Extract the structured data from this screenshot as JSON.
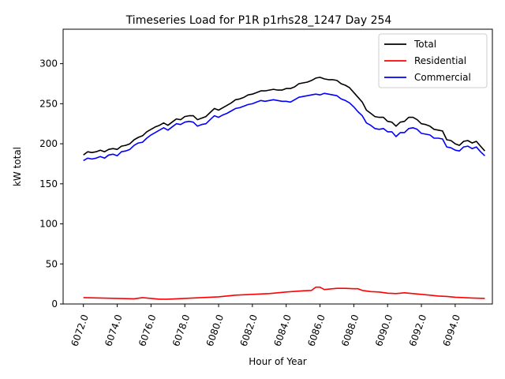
{
  "chart_data": {
    "type": "line",
    "title": "Timeseries Load for P1R p1rhs28_1247  Day 254",
    "xlabel": "Hour of Year",
    "ylabel": "kW total",
    "xlim": [
      6070.8,
      6096.2
    ],
    "ylim": [
      0,
      343
    ],
    "x_ticks": [
      6072,
      6074,
      6076,
      6078,
      6080,
      6082,
      6084,
      6086,
      6088,
      6090,
      6092,
      6094
    ],
    "x_tick_labels": [
      "6072.0",
      "6074.0",
      "6076.0",
      "6078.0",
      "6080.0",
      "6082.0",
      "6084.0",
      "6086.0",
      "6088.0",
      "6090.0",
      "6092.0",
      "6094.0"
    ],
    "y_ticks": [
      0,
      50,
      100,
      150,
      200,
      250,
      300
    ],
    "y_tick_labels": [
      "0",
      "50",
      "100",
      "150",
      "200",
      "250",
      "300"
    ],
    "grid": false,
    "legend": "top-right",
    "series": [
      {
        "name": "Total",
        "color": "#000000",
        "points": [
          [
            6072.0,
            186
          ],
          [
            6072.25,
            190
          ],
          [
            6072.5,
            189
          ],
          [
            6072.75,
            190
          ],
          [
            6073.0,
            192
          ],
          [
            6073.25,
            190
          ],
          [
            6073.5,
            193
          ],
          [
            6073.75,
            194
          ],
          [
            6074.0,
            193
          ],
          [
            6074.25,
            197
          ],
          [
            6074.5,
            198
          ],
          [
            6074.75,
            200
          ],
          [
            6075.0,
            205
          ],
          [
            6075.25,
            208
          ],
          [
            6075.5,
            210
          ],
          [
            6075.75,
            215
          ],
          [
            6076.0,
            218
          ],
          [
            6076.25,
            221
          ],
          [
            6076.5,
            223
          ],
          [
            6076.75,
            226
          ],
          [
            6077.0,
            223
          ],
          [
            6077.25,
            227
          ],
          [
            6077.5,
            231
          ],
          [
            6077.75,
            230
          ],
          [
            6078.0,
            234
          ],
          [
            6078.25,
            235
          ],
          [
            6078.5,
            235
          ],
          [
            6078.75,
            230
          ],
          [
            6079.0,
            232
          ],
          [
            6079.25,
            234
          ],
          [
            6079.5,
            239
          ],
          [
            6079.75,
            244
          ],
          [
            6080.0,
            242
          ],
          [
            6080.25,
            245
          ],
          [
            6080.5,
            248
          ],
          [
            6080.75,
            251
          ],
          [
            6081.0,
            255
          ],
          [
            6081.25,
            256
          ],
          [
            6081.5,
            258
          ],
          [
            6081.75,
            261
          ],
          [
            6082.0,
            262
          ],
          [
            6082.25,
            264
          ],
          [
            6082.5,
            266
          ],
          [
            6082.75,
            266
          ],
          [
            6083.0,
            267
          ],
          [
            6083.25,
            268
          ],
          [
            6083.5,
            267
          ],
          [
            6083.75,
            267
          ],
          [
            6084.0,
            269
          ],
          [
            6084.25,
            269
          ],
          [
            6084.5,
            271
          ],
          [
            6084.75,
            275
          ],
          [
            6085.0,
            276
          ],
          [
            6085.25,
            277
          ],
          [
            6085.5,
            279
          ],
          [
            6085.75,
            282
          ],
          [
            6086.0,
            283
          ],
          [
            6086.25,
            281
          ],
          [
            6086.5,
            280
          ],
          [
            6086.75,
            280
          ],
          [
            6087.0,
            279
          ],
          [
            6087.25,
            275
          ],
          [
            6087.5,
            273
          ],
          [
            6087.75,
            270
          ],
          [
            6088.0,
            264
          ],
          [
            6088.25,
            258
          ],
          [
            6088.5,
            252
          ],
          [
            6088.75,
            242
          ],
          [
            6089.0,
            238
          ],
          [
            6089.25,
            234
          ],
          [
            6089.5,
            233
          ],
          [
            6089.75,
            233
          ],
          [
            6090.0,
            228
          ],
          [
            6090.25,
            227
          ],
          [
            6090.5,
            222
          ],
          [
            6090.75,
            227
          ],
          [
            6091.0,
            228
          ],
          [
            6091.25,
            233
          ],
          [
            6091.5,
            233
          ],
          [
            6091.75,
            230
          ],
          [
            6092.0,
            225
          ],
          [
            6092.25,
            224
          ],
          [
            6092.5,
            222
          ],
          [
            6092.75,
            218
          ],
          [
            6093.0,
            217
          ],
          [
            6093.25,
            216
          ],
          [
            6093.5,
            205
          ],
          [
            6093.75,
            204
          ],
          [
            6094.0,
            200
          ],
          [
            6094.25,
            198
          ],
          [
            6094.5,
            203
          ],
          [
            6094.75,
            204
          ],
          [
            6095.0,
            201
          ],
          [
            6095.25,
            203
          ],
          [
            6095.5,
            197
          ],
          [
            6095.75,
            191
          ]
        ]
      },
      {
        "name": "Residential",
        "color": "#ff0000",
        "points": [
          [
            6072.0,
            8
          ],
          [
            6073.0,
            7.5
          ],
          [
            6074.0,
            7
          ],
          [
            6075.0,
            6.5
          ],
          [
            6075.5,
            8
          ],
          [
            6076.0,
            7
          ],
          [
            6076.5,
            6
          ],
          [
            6077.0,
            6
          ],
          [
            6078.0,
            7
          ],
          [
            6079.0,
            8
          ],
          [
            6080.0,
            9
          ],
          [
            6081.0,
            11
          ],
          [
            6082.0,
            12
          ],
          [
            6083.0,
            13
          ],
          [
            6084.0,
            15
          ],
          [
            6085.0,
            16.5
          ],
          [
            6085.5,
            17
          ],
          [
            6085.75,
            21
          ],
          [
            6086.0,
            21
          ],
          [
            6086.25,
            18
          ],
          [
            6086.5,
            18.5
          ],
          [
            6087.0,
            19.5
          ],
          [
            6087.5,
            19.5
          ],
          [
            6088.0,
            19
          ],
          [
            6088.25,
            19
          ],
          [
            6088.5,
            17
          ],
          [
            6089.0,
            15.5
          ],
          [
            6089.5,
            15
          ],
          [
            6090.0,
            13.5
          ],
          [
            6090.5,
            13
          ],
          [
            6091.0,
            14
          ],
          [
            6091.5,
            13
          ],
          [
            6092.0,
            12
          ],
          [
            6092.5,
            11
          ],
          [
            6093.0,
            10
          ],
          [
            6093.5,
            9.5
          ],
          [
            6094.0,
            8.5
          ],
          [
            6094.5,
            8
          ],
          [
            6095.0,
            7.5
          ],
          [
            6095.75,
            7
          ]
        ]
      },
      {
        "name": "Commercial",
        "color": "#0000ff",
        "points": [
          [
            6072.0,
            179
          ],
          [
            6072.25,
            182
          ],
          [
            6072.5,
            181
          ],
          [
            6072.75,
            182
          ],
          [
            6073.0,
            184
          ],
          [
            6073.25,
            182
          ],
          [
            6073.5,
            186
          ],
          [
            6073.75,
            187
          ],
          [
            6074.0,
            185
          ],
          [
            6074.25,
            190
          ],
          [
            6074.5,
            191
          ],
          [
            6074.75,
            193
          ],
          [
            6075.0,
            198
          ],
          [
            6075.25,
            201
          ],
          [
            6075.5,
            202
          ],
          [
            6075.75,
            207
          ],
          [
            6076.0,
            211
          ],
          [
            6076.25,
            214
          ],
          [
            6076.5,
            217
          ],
          [
            6076.75,
            220
          ],
          [
            6077.0,
            217
          ],
          [
            6077.25,
            221
          ],
          [
            6077.5,
            225
          ],
          [
            6077.75,
            224
          ],
          [
            6078.0,
            227
          ],
          [
            6078.25,
            228
          ],
          [
            6078.5,
            227
          ],
          [
            6078.75,
            222
          ],
          [
            6079.0,
            224
          ],
          [
            6079.25,
            225
          ],
          [
            6079.5,
            230
          ],
          [
            6079.75,
            235
          ],
          [
            6080.0,
            233
          ],
          [
            6080.25,
            236
          ],
          [
            6080.5,
            238
          ],
          [
            6080.75,
            241
          ],
          [
            6081.0,
            244
          ],
          [
            6081.25,
            245
          ],
          [
            6081.5,
            247
          ],
          [
            6081.75,
            249
          ],
          [
            6082.0,
            250
          ],
          [
            6082.25,
            252
          ],
          [
            6082.5,
            254
          ],
          [
            6082.75,
            253
          ],
          [
            6083.0,
            254
          ],
          [
            6083.25,
            255
          ],
          [
            6083.5,
            254
          ],
          [
            6083.75,
            253
          ],
          [
            6084.0,
            253
          ],
          [
            6084.25,
            252
          ],
          [
            6084.5,
            255
          ],
          [
            6084.75,
            258
          ],
          [
            6085.0,
            259
          ],
          [
            6085.25,
            260
          ],
          [
            6085.5,
            261
          ],
          [
            6085.75,
            262
          ],
          [
            6086.0,
            261
          ],
          [
            6086.25,
            263
          ],
          [
            6086.5,
            262
          ],
          [
            6086.75,
            261
          ],
          [
            6087.0,
            260
          ],
          [
            6087.25,
            256
          ],
          [
            6087.5,
            254
          ],
          [
            6087.75,
            251
          ],
          [
            6088.0,
            246
          ],
          [
            6088.25,
            240
          ],
          [
            6088.5,
            235
          ],
          [
            6088.75,
            226
          ],
          [
            6089.0,
            223
          ],
          [
            6089.25,
            219
          ],
          [
            6089.5,
            218
          ],
          [
            6089.75,
            219
          ],
          [
            6090.0,
            215
          ],
          [
            6090.25,
            215
          ],
          [
            6090.5,
            209
          ],
          [
            6090.75,
            214
          ],
          [
            6091.0,
            214
          ],
          [
            6091.25,
            219
          ],
          [
            6091.5,
            220
          ],
          [
            6091.75,
            218
          ],
          [
            6092.0,
            213
          ],
          [
            6092.25,
            212
          ],
          [
            6092.5,
            211
          ],
          [
            6092.75,
            207
          ],
          [
            6093.0,
            207
          ],
          [
            6093.25,
            206
          ],
          [
            6093.5,
            196
          ],
          [
            6093.75,
            195
          ],
          [
            6094.0,
            192
          ],
          [
            6094.25,
            191
          ],
          [
            6094.5,
            196
          ],
          [
            6094.75,
            197
          ],
          [
            6095.0,
            194
          ],
          [
            6095.25,
            196
          ],
          [
            6095.5,
            190
          ],
          [
            6095.75,
            185
          ]
        ]
      }
    ]
  }
}
